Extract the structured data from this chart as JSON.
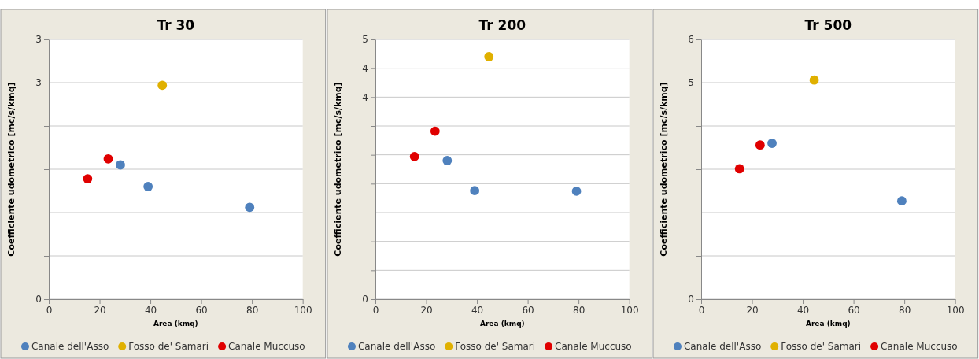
{
  "chart_data": [
    {
      "type": "scatter",
      "title": "Tr 30",
      "xlabel": "Area (kmq)",
      "ylabel": "Coefficiente udometrico [mc/s/kmq]",
      "xlim": [
        0,
        100
      ],
      "xticks": [
        0,
        20,
        40,
        60,
        80,
        100
      ],
      "ylim": [
        0,
        3
      ],
      "yticks": [
        0,
        {
          "value": 0.5,
          "label": null
        },
        {
          "value": 1,
          "label": null
        },
        {
          "value": 1.5,
          "label": null
        },
        {
          "value": 2,
          "label": null
        },
        {
          "value": 2.5,
          "label": "3"
        },
        {
          "value": 3,
          "label": "3"
        }
      ],
      "grid": "y",
      "legend": "bottom",
      "marker": "circle",
      "series": [
        {
          "name": "Canale dell'Asso",
          "color": "#4f81bd",
          "x": [
            28.2,
            39.1,
            79.1
          ],
          "values": [
            1.55,
            1.3,
            1.06
          ]
        },
        {
          "name": "Fosso de' Samari",
          "color": "#e0b000",
          "x": [
            44.7
          ],
          "values": [
            2.47
          ]
        },
        {
          "name": "Canale Muccuso",
          "color": "#e00000",
          "x": [
            15.3,
            23.4
          ],
          "values": [
            1.39,
            1.62
          ]
        }
      ]
    },
    {
      "type": "scatter",
      "title": "Tr 200",
      "xlabel": "Area (kmq)",
      "ylabel": "Coefficiente udometrico [mc/s/kmq]",
      "xlim": [
        0,
        100
      ],
      "xticks": [
        0,
        20,
        40,
        60,
        80,
        100
      ],
      "ylim": [
        0,
        4.5
      ],
      "yticks": [
        0,
        {
          "value": 0.5,
          "label": null
        },
        {
          "value": 1,
          "label": null
        },
        {
          "value": 1.5,
          "label": null
        },
        {
          "value": 2,
          "label": null
        },
        {
          "value": 2.5,
          "label": null
        },
        {
          "value": 3,
          "label": null
        },
        {
          "value": 3.5,
          "label": "4"
        },
        {
          "value": 4,
          "label": "4"
        },
        {
          "value": 4.5,
          "label": "5"
        }
      ],
      "grid": "y",
      "legend": "bottom",
      "marker": "circle",
      "series": [
        {
          "name": "Canale dell'Asso",
          "color": "#4f81bd",
          "x": [
            28.3,
            39.1,
            79.2
          ],
          "values": [
            2.4,
            1.88,
            1.87
          ]
        },
        {
          "name": "Fosso de' Samari",
          "color": "#e0b000",
          "x": [
            44.7
          ],
          "values": [
            4.2
          ]
        },
        {
          "name": "Canale Muccuso",
          "color": "#e00000",
          "x": [
            15.4,
            23.5
          ],
          "values": [
            2.47,
            2.91
          ]
        }
      ]
    },
    {
      "type": "scatter",
      "title": "Tr 500",
      "xlabel": "Area (kmq)",
      "ylabel": "Coefficiente udometrico [mc/s/kmq]",
      "xlim": [
        0,
        100
      ],
      "xticks": [
        0,
        20,
        40,
        60,
        80,
        100
      ],
      "ylim": [
        0,
        6
      ],
      "yticks": [
        0,
        {
          "value": 1,
          "label": null
        },
        {
          "value": 2,
          "label": null
        },
        {
          "value": 3,
          "label": null
        },
        {
          "value": 4,
          "label": null
        },
        5,
        6
      ],
      "grid": "y",
      "legend": "bottom",
      "marker": "circle",
      "series": [
        {
          "name": "Canale dell'Asso",
          "color": "#4f81bd",
          "x": [
            27.9,
            79.0
          ],
          "values": [
            3.6,
            2.27
          ]
        },
        {
          "name": "Fosso de' Samari",
          "color": "#e0b000",
          "x": [
            44.5
          ],
          "values": [
            5.06
          ]
        },
        {
          "name": "Canale Muccuso",
          "color": "#e00000",
          "x": [
            15.1,
            23.2
          ],
          "values": [
            3.01,
            3.56
          ]
        }
      ]
    }
  ]
}
